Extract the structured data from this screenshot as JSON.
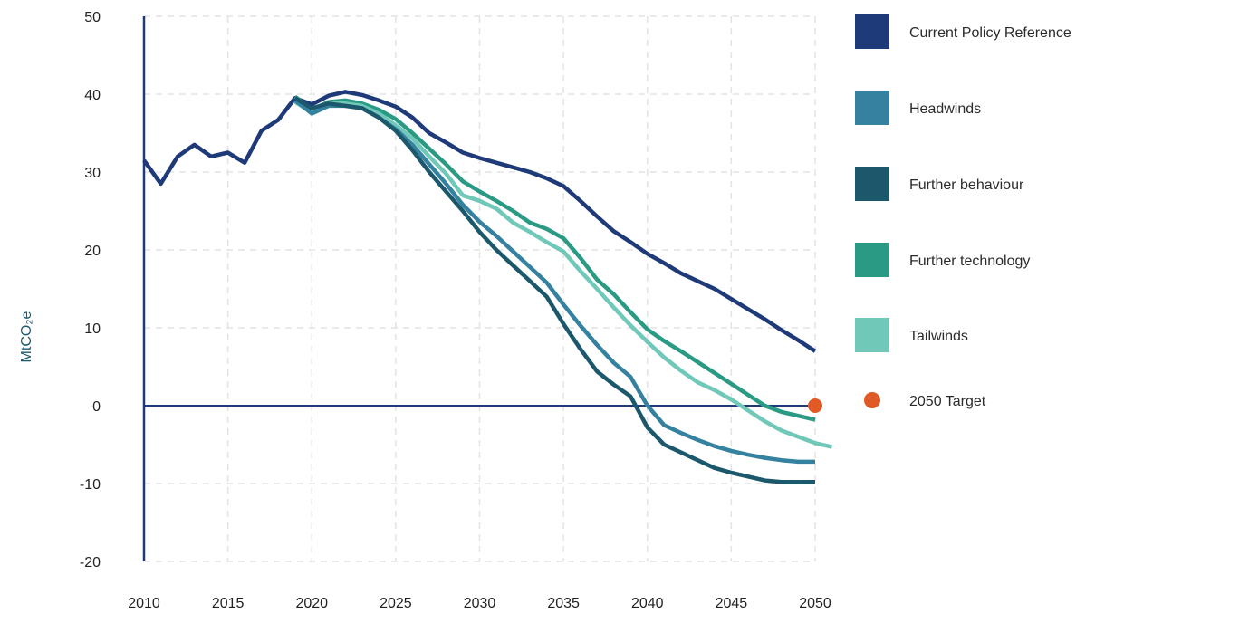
{
  "chart_data": {
    "type": "line",
    "title": "",
    "xlabel": "",
    "ylabel": "MtCO₂e",
    "xlim": [
      2010,
      2050
    ],
    "ylim": [
      -20,
      50
    ],
    "x_ticks": [
      2010,
      2015,
      2020,
      2025,
      2030,
      2035,
      2040,
      2045,
      2050
    ],
    "y_ticks": [
      50,
      40,
      30,
      20,
      10,
      0,
      -10,
      -20
    ],
    "grid": true,
    "legend_position": "right",
    "series": [
      {
        "name": "Current Policy Reference",
        "color": "#1f3a78",
        "start": 2010,
        "values": [
          31.5,
          28.5,
          32,
          33.5,
          32,
          32.5,
          31.2,
          35.3,
          36.7,
          39.5,
          38.7,
          39.8,
          40.3,
          39.9,
          39.2,
          38.4,
          37,
          35,
          33.8,
          32.5,
          31.8,
          31.2,
          30.6,
          30,
          29.2,
          28.2,
          26.3,
          24.3,
          22.4,
          21,
          19.5,
          18.3,
          17,
          16,
          15,
          13.7,
          12.4,
          11.1,
          9.7,
          8.4,
          7
        ]
      },
      {
        "name": "Headwinds",
        "color": "#3581a0",
        "start": 2019,
        "values": [
          39.2,
          37.5,
          38.5,
          38.5,
          38.2,
          37,
          35.5,
          33.5,
          31,
          28.5,
          25.8,
          23.6,
          21.8,
          19.8,
          17.8,
          15.8,
          13,
          10.3,
          7.8,
          5.5,
          3.7,
          0,
          -2.5,
          -3.5,
          -4.4,
          -5.2,
          -5.8,
          -6.3,
          -6.7,
          -7,
          -7.2,
          -7.2
        ]
      },
      {
        "name": "Further behaviour",
        "color": "#1b586c",
        "start": 2019,
        "values": [
          39.5,
          38.2,
          38.8,
          38.5,
          38.2,
          37,
          35.3,
          32.8,
          30,
          27.5,
          25,
          22.3,
          20,
          18,
          16,
          14,
          10.5,
          7.3,
          4.4,
          2.7,
          1.2,
          -2.8,
          -5,
          -6,
          -7,
          -8,
          -8.6,
          -9.1,
          -9.6,
          -9.8,
          -9.8,
          -9.8
        ]
      },
      {
        "name": "Further technology",
        "color": "#2a9a84",
        "start": 2019,
        "values": [
          39.7,
          38,
          39,
          39.2,
          38.8,
          38,
          36.8,
          35,
          33,
          31,
          28.8,
          27.5,
          26.3,
          25,
          23.5,
          22.7,
          21.5,
          19,
          16.2,
          14.3,
          12,
          9.8,
          8.3,
          7,
          5.6,
          4.2,
          2.8,
          1.4,
          0,
          -0.8,
          -1.3,
          -1.8
        ]
      },
      {
        "name": "Tailwinds",
        "color": "#70c8b8",
        "start": 2019,
        "values": [
          39,
          37.7,
          38.8,
          38.8,
          38.5,
          37.5,
          36,
          34.3,
          32,
          29.8,
          27,
          26.3,
          25.3,
          23.5,
          22.3,
          21,
          19.8,
          17.3,
          15,
          12.6,
          10.3,
          8.2,
          6.2,
          4.5,
          3,
          2,
          0.8,
          -0.6,
          -2,
          -3.2,
          -4,
          -4.8,
          -5.3
        ]
      },
      {
        "name": "2050 Target",
        "color": "#e05a28",
        "type": "point",
        "x": 2050,
        "y": 0
      }
    ]
  }
}
